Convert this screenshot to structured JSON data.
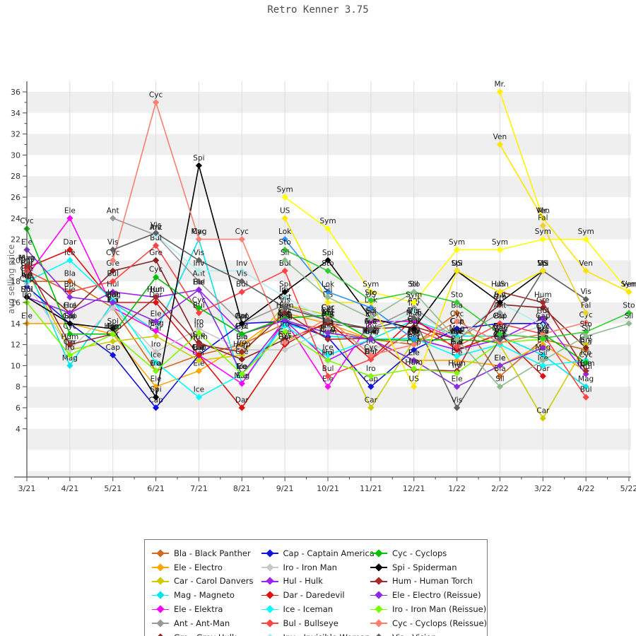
{
  "title": "Retro Kenner 3.75",
  "y_axis": {
    "label": "avg selling price",
    "tick_min": 4,
    "tick_max": 36,
    "tick_step": 2
  },
  "x_axis": {
    "months": [
      "3/21",
      "4/21",
      "5/21",
      "6/21",
      "7/21",
      "8/21",
      "9/21",
      "10/21",
      "11/21",
      "12/21",
      "1/22",
      "2/22",
      "3/22",
      "4/22",
      "5/22"
    ]
  },
  "chart_data": {
    "type": "line",
    "title": "Retro Kenner 3.75",
    "ylabel": "avg selling price",
    "xlabel": "",
    "ylim": [
      4,
      36
    ],
    "grid": "vertical-monthly, alternating horizontal bands",
    "legend_position": "below-chart, 3 columns, clipped at bottom",
    "x": [
      "3/21",
      "4/21",
      "5/21",
      "6/21",
      "7/21",
      "8/21",
      "9/21",
      "10/21",
      "11/21",
      "12/21",
      "1/22",
      "2/22",
      "3/22",
      "4/22",
      "5/22"
    ],
    "series": [
      {
        "key": "Bla",
        "label": "Bla",
        "name": "Bla - Black Panther",
        "color": "#D2691E",
        "in_legend": true,
        "values": [
          18,
          18,
          15.5,
          9.5,
          11,
          12,
          14,
          13.5,
          12.5,
          12,
          15,
          9,
          12.5,
          11.5,
          null
        ]
      },
      {
        "key": "Ele",
        "label": "Ele",
        "name": "Ele - Electro",
        "color": "#FFA500",
        "in_legend": true,
        "values": [
          14,
          14,
          13,
          8,
          9.5,
          12,
          15,
          14,
          12.5,
          10.5,
          10.5,
          10,
          12,
          9.5,
          null
        ]
      },
      {
        "key": "Car",
        "label": "Car",
        "name": "Car - Carol Danvers",
        "color": "#CCCC00",
        "in_legend": true,
        "values": [
          19,
          11.5,
          12.3,
          12.8,
          10.5,
          11,
          15.8,
          14.8,
          6,
          12.4,
          13.5,
          12,
          5,
          12,
          null
        ]
      },
      {
        "key": "Mag",
        "label": "Mag",
        "name": "Mag - Magneto",
        "color": "#00E5EE",
        "in_legend": true,
        "values": [
          19.5,
          10,
          16,
          13.3,
          22,
          8.3,
          14,
          12.8,
          12.5,
          14.3,
          12.8,
          12.8,
          11,
          8,
          null
        ]
      },
      {
        "key": "Elk",
        "label": "Ele",
        "name": "Ele - Elektra",
        "color": "#FF00FF",
        "in_legend": true,
        "values": [
          18.5,
          24,
          15.5,
          13.3,
          11,
          8.3,
          14.3,
          8,
          14.2,
          14.2,
          12.5,
          null,
          null,
          null,
          null
        ]
      },
      {
        "key": "Ant",
        "label": "Ant",
        "name": "Ant - Ant-Man",
        "color": "#999999",
        "in_legend": true,
        "values": [
          null,
          null,
          24,
          22.4,
          18,
          14,
          15.8,
          14.3,
          13.5,
          15.5,
          12.5,
          15,
          null,
          null,
          null
        ]
      },
      {
        "key": "Gre",
        "label": "Gre",
        "name": "Gre - Grey Hulk",
        "color": "#8B2222",
        "in_legend": true,
        "values": [
          18.5,
          15,
          19,
          20,
          12.2,
          10.6,
          12.5,
          14,
          13.5,
          13.7,
          12.5,
          15.8,
          15.5,
          11.7,
          null
        ]
      },
      {
        "key": "Cap",
        "label": "Cap",
        "name": "Cap - Captain America",
        "color": "#1212DD",
        "in_legend": true,
        "values": [
          17.5,
          14,
          11,
          6,
          11,
          14,
          14.2,
          12.7,
          8,
          11.5,
          13.5,
          14,
          14,
          null,
          null
        ]
      },
      {
        "key": "Iro",
        "label": "Iro",
        "name": "Iro - Iron Man",
        "color": "#C8C8C8",
        "in_legend": true,
        "values": [
          17.8,
          11.5,
          15.5,
          11.3,
          13.5,
          11.5,
          11.5,
          13.5,
          11.6,
          12.5,
          11.5,
          12.5,
          13.8,
          null,
          null
        ]
      },
      {
        "key": "Hul",
        "label": "Hul",
        "name": "Hul - Hulk",
        "color": "#A020F0",
        "in_legend": true,
        "values": [
          16.5,
          15,
          17,
          16.5,
          17.2,
          13,
          14.3,
          10.5,
          12.5,
          12.6,
          11.5,
          12.5,
          14.5,
          9.2,
          null
        ]
      },
      {
        "key": "Dar",
        "label": "Dar",
        "name": "Dar - Daredevil",
        "color": "#E01010",
        "in_legend": true,
        "values": [
          19.3,
          21,
          16,
          16,
          11,
          6,
          12,
          14.2,
          10.6,
          14.5,
          11.5,
          13,
          9,
          null,
          null
        ]
      },
      {
        "key": "Ice",
        "label": "Ice",
        "name": "Ice - Iceman",
        "color": "#00FFFF",
        "in_legend": true,
        "values": [
          18,
          20,
          16.2,
          10.3,
          7,
          9.2,
          13.8,
          11,
          12.5,
          12.6,
          10.9,
          12,
          10,
          10.5,
          null
        ]
      },
      {
        "key": "Bul",
        "label": "Bul",
        "name": "Bul - Bullseye",
        "color": "#FF4444",
        "in_legend": true,
        "values": [
          19,
          17,
          18,
          21.4,
          15,
          17,
          19,
          9,
          10.6,
          13.5,
          11.8,
          14,
          13,
          7,
          null
        ]
      },
      {
        "key": "Inv",
        "label": "Inv",
        "name": "Inv - Invisible Woman",
        "color": "#AEEEEE",
        "in_legend": true,
        "values": [
          null,
          null,
          null,
          22.4,
          19,
          19,
          16.5,
          14.3,
          13,
          15.2,
          12.5,
          16,
          13.8,
          null,
          null
        ]
      },
      {
        "key": "Cyc",
        "label": "Cyc",
        "name": "Cyc - Cyclops",
        "color": "#00C000",
        "in_legend": true,
        "values": [
          23,
          13,
          13,
          18.4,
          15.5,
          13,
          14.5,
          14.8,
          12.5,
          12.4,
          12.5,
          12.2,
          13,
          10.3,
          null
        ]
      },
      {
        "key": "Spi",
        "label": "Spi",
        "name": "Spi - Spiderman",
        "color": "#000000",
        "in_legend": true,
        "values": [
          16.5,
          14,
          13.5,
          7,
          29,
          14,
          17,
          20,
          14.5,
          13.5,
          19,
          16,
          19,
          null,
          null
        ]
      },
      {
        "key": "Hum",
        "label": "Hum",
        "name": "Hum - Human Torch",
        "color": "#A52A2A",
        "in_legend": true,
        "values": [
          19.5,
          12,
          13,
          16.5,
          12,
          11.3,
          15,
          12.5,
          12.6,
          9.6,
          9.5,
          17,
          16,
          9.5,
          null
        ]
      },
      {
        "key": "ElR",
        "label": "Ele",
        "name": "Ele - Electro (Reissue)",
        "color": "#8A2BE2",
        "in_legend": true,
        "values": [
          21,
          16.5,
          16,
          14.2,
          17.2,
          9.2,
          14.3,
          13.1,
          12.5,
          10.5,
          8,
          10,
          11.7,
          null,
          null
        ]
      },
      {
        "key": "IrR",
        "label": "Iro",
        "name": "Iro - Iron Man (Reissue)",
        "color": "#7CFC00",
        "in_legend": true,
        "values": [
          16,
          11,
          13,
          9.5,
          13.1,
          9.2,
          13.2,
          10.5,
          9,
          9.7,
          9.3,
          12.2,
          12.5,
          null,
          null
        ]
      },
      {
        "key": "CyR",
        "label": "Cyc",
        "name": "Cyc - Cyclops (Reissue)",
        "color": "#FA8072",
        "in_legend": true,
        "values": [
          null,
          null,
          20,
          35,
          22,
          22,
          12.2,
          14.5,
          11,
          12,
          14.2,
          12.2,
          13,
          14.1,
          null
        ]
      },
      {
        "key": "Vis",
        "label": "Vis",
        "name": "Vis - Vision",
        "color": "#606060",
        "in_legend": true,
        "values": [
          null,
          null,
          21,
          22.6,
          20,
          18,
          15.5,
          14.3,
          13.5,
          14.5,
          6,
          12.5,
          19,
          16.3,
          null
        ]
      },
      {
        "key": "Sym",
        "label": "Sym",
        "name": "Sym",
        "color": "#FFFF00",
        "in_legend": false,
        "values": [
          null,
          null,
          null,
          null,
          null,
          null,
          26,
          23,
          17,
          16,
          21,
          21,
          22,
          22,
          17
        ]
      },
      {
        "key": "US",
        "label": "US",
        "name": "US",
        "color": "#FFE800",
        "in_legend": false,
        "values": [
          null,
          null,
          null,
          null,
          null,
          null,
          24,
          16,
          16,
          8,
          19,
          17,
          19,
          null,
          null
        ]
      },
      {
        "key": "Lok",
        "label": "Lok",
        "name": "Lok",
        "color": "#2E8FFF",
        "in_legend": false,
        "values": [
          null,
          null,
          null,
          null,
          null,
          null,
          22,
          17,
          15.5,
          12.5,
          null,
          null,
          null,
          null,
          null
        ]
      },
      {
        "key": "Sto",
        "label": "Sto",
        "name": "Sto",
        "color": "#32CD32",
        "in_legend": false,
        "values": [
          null,
          null,
          null,
          null,
          null,
          null,
          21,
          19,
          16.2,
          17,
          16,
          13,
          12.6,
          13.2,
          15
        ]
      },
      {
        "key": "Sil",
        "label": "Sil",
        "name": "Sil",
        "color": "#8FBC8F",
        "in_legend": false,
        "values": [
          null,
          null,
          null,
          null,
          null,
          null,
          20,
          16.5,
          14.5,
          17,
          12.5,
          8,
          10.5,
          12.8,
          14
        ]
      },
      {
        "key": "Ven",
        "label": "Ven",
        "name": "Ven",
        "color": "#FFE400",
        "in_legend": false,
        "values": [
          null,
          null,
          null,
          null,
          null,
          null,
          null,
          null,
          null,
          null,
          null,
          31,
          24,
          19,
          17
        ]
      },
      {
        "key": "Mr",
        "label": "Mr.",
        "name": "Mr.",
        "color": "#FFF200",
        "in_legend": false,
        "values": [
          null,
          null,
          null,
          null,
          null,
          null,
          null,
          null,
          null,
          null,
          null,
          36,
          24,
          null,
          null
        ]
      },
      {
        "key": "Fal",
        "label": "Fal",
        "name": "Fal",
        "color": "#EDD12E",
        "in_legend": false,
        "values": [
          null,
          null,
          null,
          null,
          null,
          null,
          null,
          null,
          null,
          null,
          null,
          null,
          23.3,
          15,
          null
        ]
      }
    ]
  },
  "colors": {
    "band": "#EFEFEF",
    "grid": "#DCDCDC",
    "spine": "#555555",
    "tick_label": "#333333",
    "point_label": "#1a1a1a",
    "title": "#4d4d4d"
  }
}
